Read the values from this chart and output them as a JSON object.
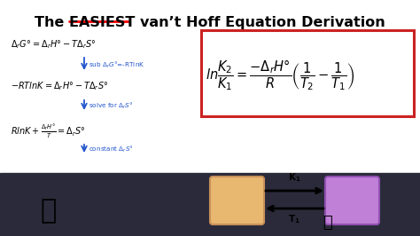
{
  "bg_color": "#ffffff",
  "title_fontsize": 11.5,
  "eq_fontsize": 7.0,
  "ann_fontsize": 5.2,
  "vh_fontsize": 10.5,
  "box_color": "#cc2222",
  "rect1_color": "#e8b870",
  "rect1_edge": "#c8905a",
  "rect2_color": "#c080d8",
  "rect2_edge": "#9050b0",
  "blue_arrow_color": "#2255cc",
  "ann_color": "#2255cc",
  "dark_bg": "#2a2a3a",
  "title_color": "#000000",
  "eq_color": "#000000"
}
